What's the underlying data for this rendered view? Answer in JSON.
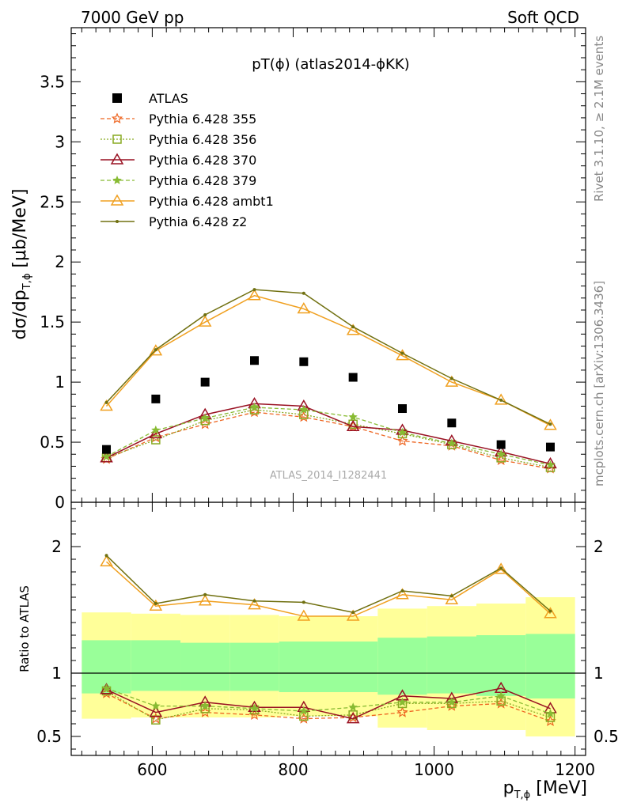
{
  "header": {
    "left": "7000 GeV pp",
    "right": "Soft QCD"
  },
  "side_labels": {
    "rivet": "Rivet 3.1.10, ≥ 2.1M events",
    "source": "mcplots.cern.ch [arXiv:1306.3436]"
  },
  "plot_title": "pT(ϕ) (atlas2014-ϕKK)",
  "watermark": "ATLAS_2014_I1282441",
  "ylabel_main": "dσ/dp T,ϕ [μb/MeV]",
  "ylabel_ratio": "Ratio to ATLAS",
  "xlabel": "p T,ϕ [MeV]",
  "colors": {
    "ref": "#000000",
    "p355": "#ee6622",
    "p356": "#88aa22",
    "p370": "#991122",
    "p379": "#88bb33",
    "ambt1": "#f0a020",
    "z2": "#707010",
    "band_inner": "#99ff99",
    "band_outer": "#ffff99"
  },
  "chart_data": {
    "type": "line",
    "x": [
      535,
      605,
      675,
      745,
      815,
      885,
      955,
      1025,
      1095,
      1165
    ],
    "xlim": [
      485,
      1215
    ],
    "xticks": [
      600,
      800,
      1000,
      1200
    ],
    "ylim": [
      0,
      3.95
    ],
    "yticks": [
      0,
      0.5,
      1,
      1.5,
      2,
      2.5,
      3,
      3.5
    ],
    "ratio_ylim": [
      0.35,
      2.35
    ],
    "ratio_yticks": [
      0.5,
      1,
      2
    ],
    "reference": {
      "name": "ATLAS",
      "values": [
        0.44,
        0.86,
        1.0,
        1.18,
        1.17,
        1.04,
        0.78,
        0.66,
        0.48,
        0.46
      ]
    },
    "series": [
      {
        "name": "Pythia 6.428 355",
        "key": "p355",
        "values": [
          0.36,
          0.54,
          0.65,
          0.75,
          0.71,
          0.63,
          0.51,
          0.47,
          0.35,
          0.28
        ],
        "ratio": [
          0.84,
          0.64,
          0.69,
          0.67,
          0.64,
          0.65,
          0.69,
          0.74,
          0.76,
          0.62
        ]
      },
      {
        "name": "Pythia 6.428 356",
        "key": "p356",
        "values": [
          0.37,
          0.52,
          0.68,
          0.77,
          0.73,
          0.65,
          0.57,
          0.48,
          0.37,
          0.29
        ],
        "ratio": [
          0.86,
          0.63,
          0.72,
          0.71,
          0.66,
          0.67,
          0.76,
          0.76,
          0.78,
          0.65
        ]
      },
      {
        "name": "Pythia 6.428 370",
        "key": "p370",
        "values": [
          0.37,
          0.57,
          0.73,
          0.82,
          0.8,
          0.63,
          0.6,
          0.51,
          0.42,
          0.32
        ],
        "ratio": [
          0.87,
          0.69,
          0.77,
          0.73,
          0.73,
          0.64,
          0.82,
          0.8,
          0.88,
          0.72
        ]
      },
      {
        "name": "Pythia 6.428 379",
        "key": "p379",
        "values": [
          0.38,
          0.6,
          0.7,
          0.79,
          0.77,
          0.71,
          0.58,
          0.49,
          0.4,
          0.31
        ],
        "ratio": [
          0.88,
          0.74,
          0.74,
          0.72,
          0.7,
          0.73,
          0.77,
          0.77,
          0.82,
          0.68
        ]
      },
      {
        "name": "Pythia 6.428 ambt1",
        "key": "ambt1",
        "values": [
          0.8,
          1.26,
          1.5,
          1.72,
          1.61,
          1.43,
          1.22,
          1.0,
          0.85,
          0.64
        ],
        "ratio": [
          1.88,
          1.53,
          1.57,
          1.54,
          1.45,
          1.45,
          1.62,
          1.58,
          1.82,
          1.47
        ]
      },
      {
        "name": "Pythia 6.428 z2",
        "key": "z2",
        "values": [
          0.83,
          1.27,
          1.56,
          1.77,
          1.74,
          1.46,
          1.24,
          1.03,
          0.85,
          0.65
        ],
        "ratio": [
          1.93,
          1.55,
          1.62,
          1.57,
          1.56,
          1.48,
          1.65,
          1.61,
          1.83,
          1.49
        ]
      }
    ],
    "bands": {
      "edges": [
        500,
        570,
        640,
        710,
        780,
        850,
        920,
        990,
        1060,
        1130,
        1200
      ],
      "inner_lo": [
        0.84,
        0.86,
        0.86,
        0.86,
        0.85,
        0.85,
        0.83,
        0.84,
        0.82,
        0.8
      ],
      "inner_hi": [
        1.26,
        1.26,
        1.24,
        1.24,
        1.25,
        1.25,
        1.28,
        1.29,
        1.3,
        1.31
      ],
      "outer_lo": [
        0.64,
        0.65,
        0.65,
        0.65,
        0.66,
        0.66,
        0.57,
        0.55,
        0.55,
        0.5
      ],
      "outer_hi": [
        1.48,
        1.47,
        1.46,
        1.46,
        1.45,
        1.45,
        1.51,
        1.53,
        1.55,
        1.6
      ]
    }
  }
}
